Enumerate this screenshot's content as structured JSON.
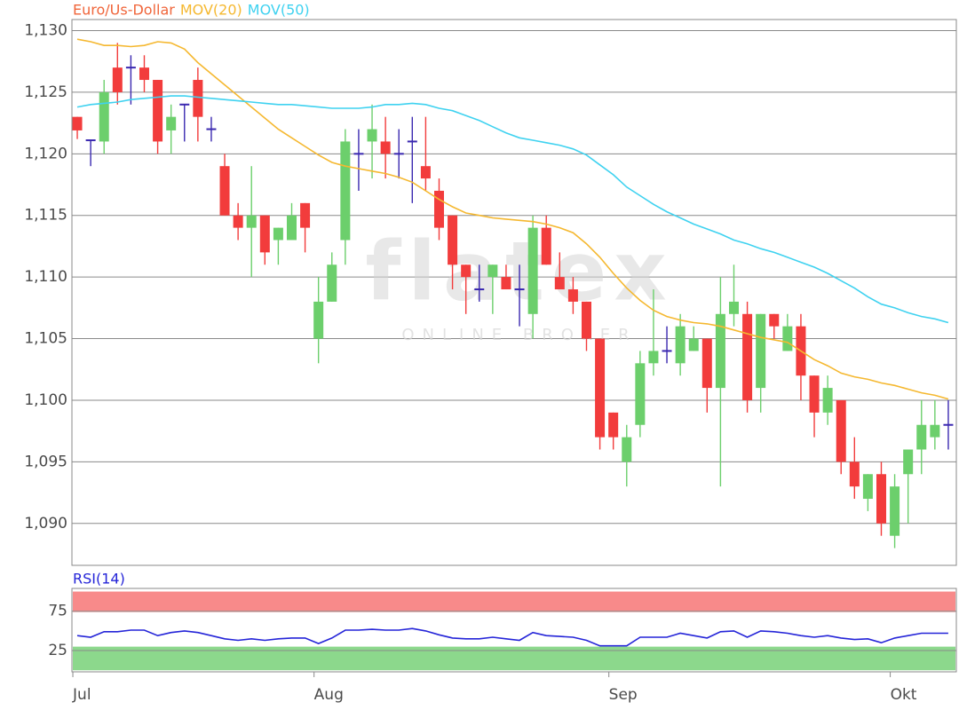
{
  "chart_data": [
    {
      "type": "candlestick",
      "name": "Euro/Us-Dollar",
      "name_color": "#f0653a",
      "colors": {
        "up": "#6ccf6c",
        "down": "#f23c3c",
        "flat": "#3a28b0"
      },
      "categories": [
        "Jul",
        null,
        null,
        null,
        null,
        null,
        null,
        null,
        null,
        null,
        null,
        null,
        null,
        null,
        null,
        null,
        null,
        null,
        "Aug",
        null,
        null,
        null,
        null,
        null,
        null,
        null,
        null,
        null,
        null,
        null,
        null,
        null,
        null,
        null,
        null,
        null,
        null,
        null,
        null,
        null,
        "Sep",
        null,
        null,
        null,
        null,
        null,
        null,
        null,
        null,
        null,
        null,
        null,
        null,
        null,
        null,
        null,
        null,
        null,
        null,
        null,
        null,
        "Okt",
        null,
        null,
        null,
        null
      ],
      "open": [
        1.123,
        1.1211,
        1.121,
        1.127,
        1.127,
        1.127,
        1.126,
        1.1219,
        1.124,
        1.126,
        1.122,
        1.119,
        1.115,
        1.114,
        1.115,
        1.113,
        1.113,
        1.116,
        1.105,
        1.108,
        1.113,
        1.12,
        1.121,
        1.121,
        1.12,
        1.121,
        1.119,
        1.117,
        1.115,
        1.111,
        1.109,
        1.11,
        1.11,
        1.109,
        1.107,
        1.114,
        1.11,
        1.109,
        1.108,
        1.105,
        1.099,
        1.095,
        1.098,
        1.103,
        1.104,
        1.103,
        1.104,
        1.105,
        1.101,
        1.107,
        1.107,
        1.101,
        1.107,
        1.104,
        1.106,
        1.102,
        1.099,
        1.1,
        1.095,
        1.092,
        1.094,
        1.089,
        1.094,
        1.096,
        1.097,
        1.098
      ],
      "high": [
        1.123,
        1.1211,
        1.126,
        1.129,
        1.128,
        1.128,
        1.126,
        1.124,
        1.124,
        1.127,
        1.123,
        1.12,
        1.116,
        1.119,
        1.115,
        1.114,
        1.116,
        1.116,
        1.11,
        1.112,
        1.122,
        1.122,
        1.124,
        1.123,
        1.122,
        1.123,
        1.123,
        1.118,
        1.115,
        1.111,
        1.111,
        1.111,
        1.111,
        1.111,
        1.115,
        1.115,
        1.112,
        1.11,
        1.108,
        1.105,
        1.099,
        1.098,
        1.104,
        1.109,
        1.106,
        1.107,
        1.106,
        1.105,
        1.11,
        1.111,
        1.108,
        1.107,
        1.107,
        1.107,
        1.107,
        1.102,
        1.102,
        1.1,
        1.097,
        1.094,
        1.095,
        1.094,
        1.096,
        1.1,
        1.1,
        1.1
      ],
      "low": [
        1.1212,
        1.119,
        1.12,
        1.124,
        1.124,
        1.125,
        1.12,
        1.12,
        1.121,
        1.121,
        1.121,
        1.115,
        1.113,
        1.11,
        1.111,
        1.111,
        1.113,
        1.112,
        1.103,
        1.108,
        1.111,
        1.117,
        1.118,
        1.118,
        1.118,
        1.116,
        1.117,
        1.113,
        1.109,
        1.107,
        1.108,
        1.107,
        1.109,
        1.106,
        1.105,
        1.111,
        1.109,
        1.107,
        1.104,
        1.096,
        1.096,
        1.093,
        1.097,
        1.102,
        1.103,
        1.102,
        1.104,
        1.099,
        1.093,
        1.106,
        1.099,
        1.099,
        1.105,
        1.104,
        1.1,
        1.097,
        1.098,
        1.094,
        1.092,
        1.091,
        1.089,
        1.088,
        1.09,
        1.094,
        1.096,
        1.096
      ],
      "close": [
        1.1219,
        1.1211,
        1.125,
        1.125,
        1.127,
        1.126,
        1.121,
        1.123,
        1.124,
        1.123,
        1.122,
        1.115,
        1.114,
        1.115,
        1.112,
        1.114,
        1.115,
        1.114,
        1.108,
        1.111,
        1.121,
        1.12,
        1.122,
        1.12,
        1.12,
        1.121,
        1.118,
        1.114,
        1.111,
        1.11,
        1.109,
        1.111,
        1.109,
        1.109,
        1.114,
        1.111,
        1.109,
        1.108,
        1.105,
        1.097,
        1.097,
        1.097,
        1.103,
        1.104,
        1.104,
        1.106,
        1.105,
        1.101,
        1.107,
        1.108,
        1.1,
        1.107,
        1.106,
        1.106,
        1.102,
        1.099,
        1.101,
        1.095,
        1.093,
        1.094,
        1.09,
        1.093,
        1.096,
        1.098,
        1.098,
        1.098
      ],
      "series": [
        {
          "name": "MOV(20)",
          "color": "#f5b830",
          "values": [
            1.1293,
            1.1291,
            1.1288,
            1.1288,
            1.1287,
            1.1288,
            1.1291,
            1.129,
            1.1285,
            1.1274,
            1.1265,
            1.1256,
            1.1247,
            1.1238,
            1.1229,
            1.122,
            1.1213,
            1.1206,
            1.1199,
            1.1193,
            1.119,
            1.1188,
            1.1186,
            1.1184,
            1.1181,
            1.1177,
            1.117,
            1.1163,
            1.1157,
            1.1152,
            1.115,
            1.1148,
            1.1147,
            1.1146,
            1.1145,
            1.1143,
            1.114,
            1.1136,
            1.1127,
            1.1116,
            1.1103,
            1.1091,
            1.1081,
            1.1073,
            1.1068,
            1.1065,
            1.1063,
            1.1062,
            1.106,
            1.1057,
            1.1054,
            1.1051,
            1.1049,
            1.1047,
            1.104,
            1.1033,
            1.1028,
            1.1022,
            1.1019,
            1.1017,
            1.1014,
            1.1012,
            1.1009,
            1.1006,
            1.1004,
            1.1001
          ]
        },
        {
          "name": "MOV(50)",
          "color": "#3fd2f0",
          "values": [
            1.1238,
            1.124,
            1.1241,
            1.1242,
            1.1244,
            1.1245,
            1.1246,
            1.1247,
            1.1247,
            1.1246,
            1.1245,
            1.1244,
            1.1243,
            1.1242,
            1.1241,
            1.124,
            1.124,
            1.1239,
            1.1238,
            1.1237,
            1.1237,
            1.1237,
            1.1238,
            1.124,
            1.124,
            1.1241,
            1.124,
            1.1237,
            1.1235,
            1.1231,
            1.1227,
            1.1222,
            1.1217,
            1.1213,
            1.1211,
            1.1209,
            1.1207,
            1.1204,
            1.1199,
            1.1191,
            1.1183,
            1.1173,
            1.1166,
            1.1159,
            1.1153,
            1.1148,
            1.1143,
            1.1139,
            1.1135,
            1.113,
            1.1127,
            1.1123,
            1.112,
            1.1116,
            1.1112,
            1.1108,
            1.1103,
            1.1097,
            1.1091,
            1.1084,
            1.1078,
            1.1075,
            1.1071,
            1.1068,
            1.1066,
            1.1063
          ]
        }
      ],
      "ylim": [
        1.0866,
        1.1309
      ],
      "yticks": [
        {
          "value": 1.09,
          "label": "1,090"
        },
        {
          "value": 1.095,
          "label": "1,095"
        },
        {
          "value": 1.1,
          "label": "1,100"
        },
        {
          "value": 1.105,
          "label": "1,105"
        },
        {
          "value": 1.11,
          "label": "1,110"
        },
        {
          "value": 1.115,
          "label": "1,115"
        },
        {
          "value": 1.12,
          "label": "1,120"
        },
        {
          "value": 1.125,
          "label": "1,125"
        },
        {
          "value": 1.13,
          "label": "1,130"
        }
      ],
      "grid": true,
      "watermark": {
        "logo": "flatex",
        "tagline": "ONLINE BROKER"
      }
    },
    {
      "type": "line",
      "series": [
        {
          "name": "RSI(14)",
          "color": "#2424d8",
          "values": [
            44,
            42,
            49,
            49,
            51,
            51,
            44,
            48,
            50,
            48,
            44,
            40,
            38,
            40,
            38,
            40,
            41,
            41,
            34,
            41,
            51,
            51,
            52,
            51,
            51,
            53,
            50,
            45,
            41,
            40,
            40,
            42,
            40,
            38,
            48,
            44,
            43,
            42,
            38,
            31,
            31,
            31,
            42,
            42,
            42,
            47,
            44,
            41,
            49,
            50,
            42,
            50,
            49,
            47,
            44,
            42,
            44,
            41,
            39,
            40,
            35,
            41,
            44,
            47,
            47,
            47
          ]
        }
      ],
      "ylim": [
        -2,
        104
      ],
      "yticks": [
        25,
        75
      ],
      "bands": [
        {
          "from": 0,
          "to": 30,
          "color": "#8cd88c"
        },
        {
          "from": 74,
          "to": 100,
          "color": "#f88a8a"
        }
      ],
      "grid": true
    }
  ]
}
